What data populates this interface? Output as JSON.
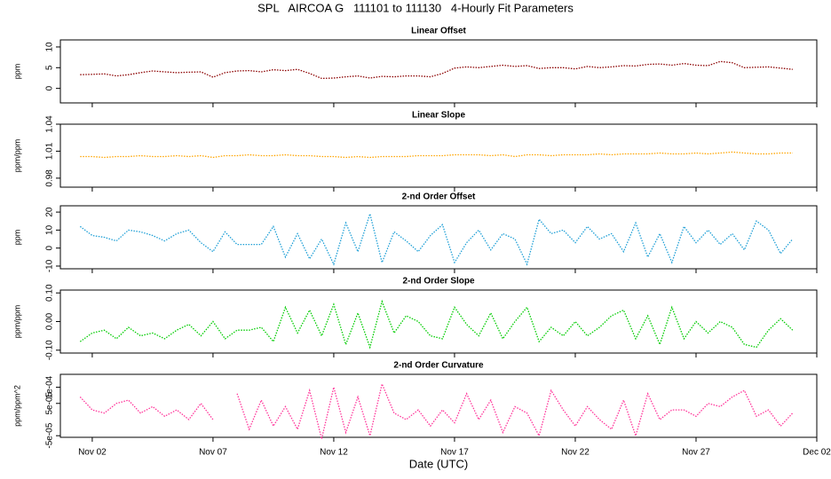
{
  "title": "SPL   AIRCOA G   111101 to 111130   4-Hourly Fit Parameters",
  "chart_data": [
    {
      "type": "line",
      "title": "Linear Offset",
      "ylabel": "ppm",
      "x": [
        1.5,
        2,
        2.5,
        3,
        3.5,
        4,
        4.5,
        5,
        5.5,
        6,
        6.5,
        7,
        7.5,
        8,
        8.5,
        9,
        9.5,
        10,
        10.5,
        11,
        11.5,
        12,
        12.5,
        13,
        13.5,
        14,
        14.5,
        15,
        15.5,
        16,
        16.5,
        17,
        17.5,
        18,
        18.5,
        19,
        19.5,
        20,
        20.5,
        21,
        21.5,
        22,
        22.5,
        23,
        23.5,
        24,
        24.5,
        25,
        25.5,
        26,
        26.5,
        27,
        27.5,
        28,
        28.5,
        29,
        29.5,
        30,
        30.5,
        31
      ],
      "xlim": [
        0.68,
        32.0
      ],
      "xticks": [
        {
          "value": 2,
          "label": "Nov 02"
        },
        {
          "value": 7,
          "label": "Nov 07"
        },
        {
          "value": 12,
          "label": "Nov 12"
        },
        {
          "value": 17,
          "label": "Nov 17"
        },
        {
          "value": 22,
          "label": "Nov 22"
        },
        {
          "value": 27,
          "label": "Nov 27"
        },
        {
          "value": 32,
          "label": "Dec 02"
        }
      ],
      "ylim": [
        -3.5,
        11.7
      ],
      "yticks": [
        0,
        5,
        10
      ],
      "series": [
        {
          "color": "#8b0000",
          "values": [
            3.3,
            3.4,
            3.5,
            3.0,
            3.3,
            3.8,
            4.2,
            4.0,
            3.8,
            3.9,
            4.0,
            2.7,
            3.8,
            4.2,
            4.3,
            4.0,
            4.5,
            4.3,
            4.6,
            3.6,
            2.4,
            2.5,
            2.8,
            3.0,
            2.5,
            2.9,
            2.8,
            3.0,
            3.0,
            2.8,
            3.6,
            4.9,
            5.2,
            5.0,
            5.3,
            5.6,
            5.3,
            5.5,
            4.8,
            5.0,
            5.0,
            4.7,
            5.3,
            5.0,
            5.2,
            5.5,
            5.4,
            5.8,
            5.9,
            5.6,
            6.0,
            5.6,
            5.5,
            6.5,
            6.2,
            5.0,
            5.1,
            5.2,
            4.9,
            4.6
          ]
        }
      ]
    },
    {
      "type": "line",
      "title": "Linear Slope",
      "ylabel": "ppm/ppm",
      "x": [
        1.5,
        2,
        2.5,
        3,
        3.5,
        4,
        4.5,
        5,
        5.5,
        6,
        6.5,
        7,
        7.5,
        8,
        8.5,
        9,
        9.5,
        10,
        10.5,
        11,
        11.5,
        12,
        12.5,
        13,
        13.5,
        14,
        14.5,
        15,
        15.5,
        16,
        16.5,
        17,
        17.5,
        18,
        18.5,
        19,
        19.5,
        20,
        20.5,
        21,
        21.5,
        22,
        22.5,
        23,
        23.5,
        24,
        24.5,
        25,
        25.5,
        26,
        26.5,
        27,
        27.5,
        28,
        28.5,
        29,
        29.5,
        30,
        30.5,
        31
      ],
      "xlim": [
        0.68,
        32.0
      ],
      "xticks": [
        {
          "value": 2,
          "label": "Nov 02"
        },
        {
          "value": 7,
          "label": "Nov 07"
        },
        {
          "value": 12,
          "label": "Nov 12"
        },
        {
          "value": 17,
          "label": "Nov 17"
        },
        {
          "value": 22,
          "label": "Nov 22"
        },
        {
          "value": 27,
          "label": "Nov 27"
        },
        {
          "value": 32,
          "label": "Dec 02"
        }
      ],
      "ylim": [
        0.97,
        1.04
      ],
      "yticks": [
        0.98,
        1.01,
        1.04
      ],
      "series": [
        {
          "color": "#ffa500",
          "values": [
            1.004,
            1.004,
            1.003,
            1.004,
            1.004,
            1.005,
            1.004,
            1.004,
            1.005,
            1.004,
            1.005,
            1.003,
            1.005,
            1.005,
            1.006,
            1.005,
            1.005,
            1.006,
            1.005,
            1.005,
            1.004,
            1.004,
            1.003,
            1.004,
            1.003,
            1.004,
            1.004,
            1.004,
            1.005,
            1.005,
            1.005,
            1.006,
            1.006,
            1.006,
            1.005,
            1.006,
            1.004,
            1.006,
            1.006,
            1.005,
            1.006,
            1.006,
            1.006,
            1.007,
            1.006,
            1.007,
            1.007,
            1.007,
            1.008,
            1.007,
            1.007,
            1.008,
            1.007,
            1.008,
            1.009,
            1.008,
            1.007,
            1.007,
            1.008,
            1.008
          ]
        }
      ]
    },
    {
      "type": "line",
      "title": "2-nd Order Offset",
      "ylabel": "ppm",
      "x": [
        1.5,
        2,
        2.5,
        3,
        3.5,
        4,
        4.5,
        5,
        5.5,
        6,
        6.5,
        7,
        7.5,
        8,
        8.5,
        9,
        9.5,
        10,
        10.5,
        11,
        11.5,
        12,
        12.5,
        13,
        13.5,
        14,
        14.5,
        15,
        15.5,
        16,
        16.5,
        17,
        17.5,
        18,
        18.5,
        19,
        19.5,
        20,
        20.5,
        21,
        21.5,
        22,
        22.5,
        23,
        23.5,
        24,
        24.5,
        25,
        25.5,
        26,
        26.5,
        27,
        27.5,
        28,
        28.5,
        29,
        29.5,
        30,
        30.5,
        31
      ],
      "xlim": [
        0.68,
        32.0
      ],
      "xticks": [
        {
          "value": 2,
          "label": "Nov 02"
        },
        {
          "value": 7,
          "label": "Nov 07"
        },
        {
          "value": 12,
          "label": "Nov 12"
        },
        {
          "value": 17,
          "label": "Nov 17"
        },
        {
          "value": 22,
          "label": "Nov 22"
        },
        {
          "value": 27,
          "label": "Nov 27"
        },
        {
          "value": 32,
          "label": "Dec 02"
        }
      ],
      "ylim": [
        -11.5,
        23.5
      ],
      "yticks": [
        -10,
        0,
        10,
        20
      ],
      "series": [
        {
          "color": "#1e9fd6",
          "values": [
            12,
            7,
            6,
            4,
            10,
            9,
            7,
            4,
            8,
            10,
            3,
            -2,
            9,
            2,
            2,
            2,
            12,
            -5,
            8,
            -6,
            5,
            -9,
            14,
            -2,
            19,
            -8,
            9,
            4,
            -2,
            7,
            13,
            -8,
            3,
            10,
            -1,
            8,
            5,
            -9,
            16,
            8,
            10,
            3,
            12,
            5,
            8,
            -2,
            14,
            -5,
            8,
            -8,
            12,
            3,
            10,
            2,
            8,
            -1,
            15,
            10,
            -3,
            5
          ]
        }
      ]
    },
    {
      "type": "line",
      "title": "2-nd Order Slope",
      "ylabel": "ppm/ppm",
      "x": [
        1.5,
        2,
        2.5,
        3,
        3.5,
        4,
        4.5,
        5,
        5.5,
        6,
        6.5,
        7,
        7.5,
        8,
        8.5,
        9,
        9.5,
        10,
        10.5,
        11,
        11.5,
        12,
        12.5,
        13,
        13.5,
        14,
        14.5,
        15,
        15.5,
        16,
        16.5,
        17,
        17.5,
        18,
        18.5,
        19,
        19.5,
        20,
        20.5,
        21,
        21.5,
        22,
        22.5,
        23,
        23.5,
        24,
        24.5,
        25,
        25.5,
        26,
        26.5,
        27,
        27.5,
        28,
        28.5,
        29,
        29.5,
        30,
        30.5,
        31
      ],
      "xlim": [
        0.68,
        32.0
      ],
      "xticks": [
        {
          "value": 2,
          "label": "Nov 02"
        },
        {
          "value": 7,
          "label": "Nov 07"
        },
        {
          "value": 12,
          "label": "Nov 12"
        },
        {
          "value": 17,
          "label": "Nov 17"
        },
        {
          "value": 22,
          "label": "Nov 22"
        },
        {
          "value": 27,
          "label": "Nov 27"
        },
        {
          "value": 32,
          "label": "Dec 02"
        }
      ],
      "ylim": [
        -0.11,
        0.11
      ],
      "yticks": [
        {
          "value": -0.1,
          "label": "-0.10"
        },
        {
          "value": 0,
          "label": "0.00"
        },
        {
          "value": 0.1,
          "label": "0.10"
        }
      ],
      "series": [
        {
          "color": "#00cc00",
          "values": [
            -0.07,
            -0.04,
            -0.03,
            -0.06,
            -0.02,
            -0.05,
            -0.04,
            -0.06,
            -0.03,
            -0.01,
            -0.05,
            0.0,
            -0.06,
            -0.03,
            -0.03,
            -0.02,
            -0.07,
            0.05,
            -0.04,
            0.04,
            -0.05,
            0.06,
            -0.08,
            0.03,
            -0.09,
            0.07,
            -0.04,
            0.02,
            0.0,
            -0.05,
            -0.06,
            0.05,
            -0.01,
            -0.05,
            0.03,
            -0.06,
            0.0,
            0.05,
            -0.07,
            -0.02,
            -0.05,
            0.0,
            -0.05,
            -0.02,
            0.02,
            0.04,
            -0.06,
            0.02,
            -0.08,
            0.05,
            -0.06,
            0.0,
            -0.04,
            0.0,
            -0.02,
            -0.08,
            -0.09,
            -0.03,
            0.01,
            -0.03
          ]
        }
      ]
    },
    {
      "type": "line",
      "title": "2-nd Order Curvature",
      "ylabel": "ppm/ppm^2",
      "xlabel": "Date (UTC)",
      "x": [
        1.5,
        2,
        2.5,
        3,
        3.5,
        4,
        4.5,
        5,
        5.5,
        6,
        6.5,
        7,
        7.5,
        8,
        8.5,
        9,
        9.5,
        10,
        10.5,
        11,
        11.5,
        12,
        12.5,
        13,
        13.5,
        14,
        14.5,
        15,
        15.5,
        16,
        16.5,
        17,
        17.5,
        18,
        18.5,
        19,
        19.5,
        20,
        20.5,
        21,
        21.5,
        22,
        22.5,
        23,
        23.5,
        24,
        24.5,
        25,
        25.5,
        26,
        26.5,
        27,
        27.5,
        28,
        28.5,
        29,
        29.5,
        30,
        30.5,
        31
      ],
      "xlim": [
        0.68,
        32.0
      ],
      "xticks": [
        {
          "value": 2,
          "label": "Nov 02"
        },
        {
          "value": 7,
          "label": "Nov 07"
        },
        {
          "value": 12,
          "label": "Nov 12"
        },
        {
          "value": 17,
          "label": "Nov 17"
        },
        {
          "value": 22,
          "label": "Nov 22"
        },
        {
          "value": 27,
          "label": "Nov 27"
        },
        {
          "value": 32,
          "label": "Dec 02"
        }
      ],
      "ylim": [
        -5.5e-05,
        0.00014
      ],
      "yticks": [
        {
          "value": -5e-05,
          "label": "-5e-05"
        },
        {
          "value": 5e-05,
          "label": "5e-05"
        },
        {
          "value": 0.0001,
          "label": "1e-04"
        }
      ],
      "series": [
        {
          "color": "#ff3399",
          "values": [
            7e-05,
            3e-05,
            2e-05,
            5e-05,
            6e-05,
            2e-05,
            4e-05,
            1e-05,
            3e-05,
            0,
            5e-05,
            0,
            null,
            8e-05,
            -3e-05,
            6e-05,
            -2e-05,
            4e-05,
            -3e-05,
            9e-05,
            -6e-05,
            0.0001,
            -4e-05,
            7e-05,
            -5e-05,
            0.00011,
            2e-05,
            0,
            3e-05,
            -2e-05,
            3e-05,
            -1e-05,
            8e-05,
            0,
            6e-05,
            -4e-05,
            4e-05,
            2e-05,
            -5e-05,
            9e-05,
            3e-05,
            -2e-05,
            4e-05,
            0,
            -3e-05,
            6e-05,
            -5e-05,
            8e-05,
            0,
            3e-05,
            3e-05,
            1e-05,
            5e-05,
            4e-05,
            7e-05,
            9e-05,
            1e-05,
            3e-05,
            -2e-05,
            2e-05
          ]
        }
      ]
    }
  ]
}
